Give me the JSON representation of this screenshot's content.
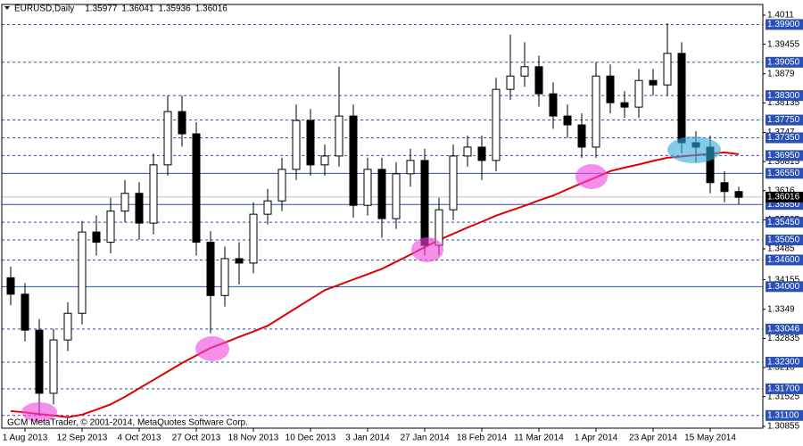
{
  "chart_data": {
    "type": "candlestick",
    "title": "EURUSD,Daily",
    "ohlc_header": [
      1.35977,
      1.36041,
      1.35936,
      1.36016
    ],
    "last_price": 1.36016,
    "watermark": "GCM MetaTrader, © 2001-2014, MetaQuotes Software Corp.",
    "categories": [
      null,
      "1 Aug 2013",
      null,
      null,
      null,
      "12 Sep 2013",
      null,
      null,
      null,
      "4 Oct 2013",
      null,
      null,
      null,
      "27 Oct 2013",
      null,
      null,
      null,
      "18 Nov 2013",
      null,
      null,
      null,
      "10 Dec 2013",
      null,
      null,
      null,
      "3 Jan 2014",
      null,
      null,
      null,
      "27 Jan 2014",
      null,
      null,
      null,
      "18 Feb 2014",
      null,
      null,
      null,
      "11 Mar 2014",
      null,
      null,
      null,
      "1 Apr 2014",
      null,
      null,
      null,
      "23 Apr 2014",
      null,
      null,
      null,
      "15 May 2014",
      null,
      null
    ],
    "open": [
      1.342,
      1.3383,
      1.3302,
      1.316,
      1.328,
      1.334,
      1.3523,
      1.35,
      1.357,
      1.361,
      1.3543,
      1.3674,
      1.3794,
      1.3744,
      1.35,
      1.338,
      1.3463,
      1.3453,
      1.3563,
      1.3593,
      1.3664,
      1.3774,
      1.3674,
      1.3694,
      1.3784,
      1.3583,
      1.3664,
      1.3553,
      1.3654,
      1.3684,
      1.3493,
      1.3573,
      1.3694,
      1.3714,
      1.3684,
      1.3844,
      1.3874,
      1.3895,
      1.3834,
      1.3784,
      1.3764,
      1.3714,
      1.3874,
      1.3814,
      1.3804,
      1.3864,
      1.3854,
      1.3925,
      1.3724,
      1.3714,
      1.3634,
      1.3614
    ],
    "high": [
      1.3445,
      1.3408,
      1.3327,
      1.3305,
      1.3365,
      1.3548,
      1.356,
      1.36,
      1.364,
      1.3635,
      1.37,
      1.383,
      1.383,
      1.377,
      1.3525,
      1.349,
      1.35,
      1.359,
      1.362,
      1.369,
      1.381,
      1.38,
      1.372,
      1.3895,
      1.381,
      1.369,
      1.369,
      1.368,
      1.371,
      1.371,
      1.36,
      1.372,
      1.374,
      1.374,
      1.387,
      1.3967,
      1.395,
      1.392,
      1.386,
      1.381,
      1.379,
      1.3905,
      1.39,
      1.384,
      1.389,
      1.389,
      1.3993,
      1.395,
      1.375,
      1.374,
      1.366,
      1.3625
    ],
    "low": [
      1.3358,
      1.3277,
      1.311,
      1.3135,
      1.3255,
      1.3315,
      1.347,
      1.3475,
      1.3545,
      1.3505,
      1.3518,
      1.365,
      1.3715,
      1.347,
      1.3295,
      1.3355,
      1.3405,
      1.343,
      1.354,
      1.357,
      1.364,
      1.365,
      1.365,
      1.367,
      1.3555,
      1.356,
      1.351,
      1.353,
      1.3625,
      1.347,
      1.347,
      1.355,
      1.367,
      1.364,
      1.366,
      1.382,
      1.385,
      1.3805,
      1.3755,
      1.3735,
      1.369,
      1.369,
      1.379,
      1.378,
      1.378,
      1.383,
      1.383,
      1.37,
      1.368,
      1.361,
      1.359,
      1.3585
    ],
    "close": [
      1.3383,
      1.3302,
      1.316,
      1.328,
      1.334,
      1.3523,
      1.35,
      1.357,
      1.361,
      1.3543,
      1.3674,
      1.3794,
      1.3744,
      1.35,
      1.338,
      1.3463,
      1.3453,
      1.3563,
      1.3593,
      1.3664,
      1.3774,
      1.3674,
      1.3694,
      1.3784,
      1.3583,
      1.3664,
      1.3553,
      1.3654,
      1.3684,
      1.3493,
      1.3573,
      1.3694,
      1.3714,
      1.3684,
      1.3844,
      1.3874,
      1.3895,
      1.3834,
      1.3784,
      1.3764,
      1.3714,
      1.3874,
      1.3814,
      1.3804,
      1.3864,
      1.3854,
      1.3925,
      1.3724,
      1.3714,
      1.3634,
      1.3614,
      1.3601
    ],
    "bull_color": "#ffffff",
    "bear_color": "#000000",
    "ma": {
      "color": "#e00000",
      "values": [
        1.312,
        1.3117,
        1.3113,
        1.311,
        1.3106,
        1.3112,
        1.3123,
        1.3135,
        1.3152,
        1.3171,
        1.319,
        1.3209,
        1.3228,
        1.3245,
        1.3262,
        1.3274,
        1.3287,
        1.3299,
        1.3312,
        1.3332,
        1.3352,
        1.3372,
        1.3392,
        1.3404,
        1.3416,
        1.3428,
        1.344,
        1.3456,
        1.3472,
        1.3489,
        1.3505,
        1.3519,
        1.3533,
        1.3546,
        1.356,
        1.3571,
        1.3582,
        1.3594,
        1.3605,
        1.3619,
        1.3633,
        1.3646,
        1.366,
        1.3668,
        1.3675,
        1.3683,
        1.369,
        1.3693,
        1.3696,
        1.3699,
        1.3702,
        1.3698
      ]
    },
    "ylim": [
      1.30855,
      1.4011
    ],
    "yticks": [
      1.4011,
      1.39455,
      1.3879,
      1.38135,
      1.3747,
      1.36815,
      1.3616,
      1.35505,
      1.3485,
      1.34155,
      1.3349,
      1.32835,
      1.3218,
      1.31525,
      1.30855
    ],
    "level_color": "#2a4fb5",
    "levels": [
      {
        "value": 1.399,
        "label": "1.39900",
        "style": "dashed"
      },
      {
        "value": 1.3905,
        "label": "1.39050",
        "style": "dashed"
      },
      {
        "value": 1.383,
        "label": "1.38300",
        "style": "dashed"
      },
      {
        "value": 1.3775,
        "label": "1.37750",
        "style": "dashed"
      },
      {
        "value": 1.3735,
        "label": "1.37350",
        "style": "dashed"
      },
      {
        "value": 1.3695,
        "label": "1.36950",
        "style": "dashed"
      },
      {
        "value": 1.3655,
        "label": "1.36550",
        "style": "solid"
      },
      {
        "value": 1.3585,
        "label": "1.35850",
        "style": "solid"
      },
      {
        "value": 1.3545,
        "label": "1.35450",
        "style": "dashed"
      },
      {
        "value": 1.3505,
        "label": "1.35050",
        "style": "dashed"
      },
      {
        "value": 1.346,
        "label": "1.34600",
        "style": "dashed"
      },
      {
        "value": 1.34,
        "label": "1.34000",
        "style": "solid"
      },
      {
        "value": 1.33046,
        "label": "1.33046",
        "style": "dashed"
      },
      {
        "value": 1.323,
        "label": "1.32300",
        "style": "dashed"
      },
      {
        "value": 1.317,
        "label": "1.31700",
        "style": "dashed"
      },
      {
        "value": 1.311,
        "label": "1.31100",
        "style": "dashed"
      }
    ]
  }
}
